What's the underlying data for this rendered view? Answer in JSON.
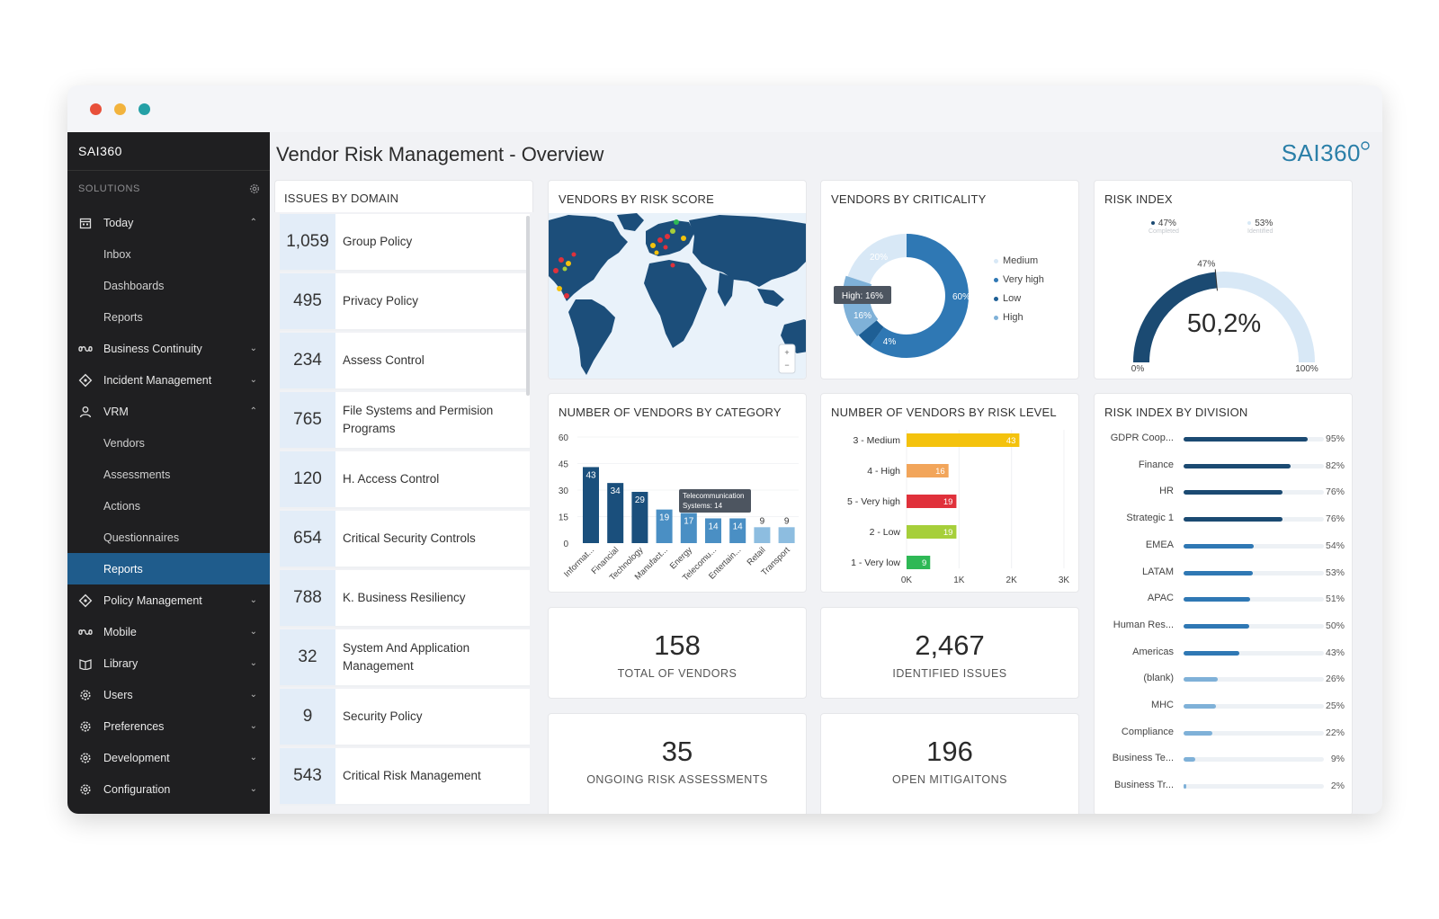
{
  "sidebar": {
    "logo": "SAI360",
    "section_label": "SOLUTIONS",
    "items": [
      {
        "label": "Today",
        "icon": "calendar-icon",
        "expanded": true,
        "subitems": [
          "Inbox",
          "Dashboards",
          "Reports"
        ]
      },
      {
        "label": "Business Continuity",
        "icon": "infinity-icon",
        "expanded": false
      },
      {
        "label": "Incident Management",
        "icon": "diamond-icon",
        "expanded": false
      },
      {
        "label": "VRM",
        "icon": "user-icon",
        "expanded": true,
        "subitems": [
          "Vendors",
          "Assessments",
          "Actions",
          "Questionnaires",
          "Reports"
        ]
      },
      {
        "label": "Policy Management",
        "icon": "diamond-icon",
        "expanded": false
      },
      {
        "label": "Mobile",
        "icon": "infinity-icon",
        "expanded": false
      },
      {
        "label": "Library",
        "icon": "library-icon",
        "expanded": false
      },
      {
        "label": "Users",
        "icon": "gear-icon",
        "expanded": false
      },
      {
        "label": "Preferences",
        "icon": "gear-icon",
        "expanded": false
      },
      {
        "label": "Development",
        "icon": "gear-icon",
        "expanded": false
      },
      {
        "label": "Configuration",
        "icon": "gear-icon",
        "expanded": false
      }
    ],
    "active_subitem": "Reports"
  },
  "header": {
    "title": "Vendor Risk Management - Overview",
    "brand": "SAI360"
  },
  "issues": {
    "title": "ISSUES BY DOMAIN",
    "rows": [
      {
        "count": "1,059",
        "label": "Group Policy"
      },
      {
        "count": "495",
        "label": "Privacy Policy"
      },
      {
        "count": "234",
        "label": "Assess Control"
      },
      {
        "count": "765",
        "label": "File Systems and Permision Programs"
      },
      {
        "count": "120",
        "label": "H. Access Control"
      },
      {
        "count": "654",
        "label": "Critical Security Controls"
      },
      {
        "count": "788",
        "label": "K. Business Resiliency"
      },
      {
        "count": "32",
        "label": "System And Application Management"
      },
      {
        "count": "9",
        "label": "Security Policy"
      },
      {
        "count": "543",
        "label": "Critical Risk Management"
      }
    ]
  },
  "map": {
    "title": "VENDORS BY RISK SCORE",
    "zoom_in": "+",
    "zoom_out": "−"
  },
  "criticality": {
    "title": "VENDORS BY CRITICALITY",
    "tooltip": "High: 16%",
    "labels": {
      "very_high": "60%",
      "high": "16%",
      "low": "4%",
      "medium": "20%"
    },
    "legend": [
      {
        "label": "Medium",
        "color": "#d8e8f6"
      },
      {
        "label": "Very high",
        "color": "#2f78b4"
      },
      {
        "label": "Low",
        "color": "#1e5f95"
      },
      {
        "label": "High",
        "color": "#7fb1d8"
      }
    ]
  },
  "risk_index": {
    "title": "RISK INDEX",
    "value": "50,2%",
    "legend": [
      {
        "pct": "47%",
        "sub": "Completed",
        "color": "#1b4a72"
      },
      {
        "pct": "53%",
        "sub": "Identified",
        "color": "#d8e8f6"
      }
    ],
    "marker": "47%",
    "min": "0%",
    "max": "100%",
    "fraction": 0.47
  },
  "chart_data": [
    {
      "type": "bar",
      "title": "NUMBER OF VENDORS BY CATEGORY",
      "categories": [
        "Informat...",
        "Financial",
        "Technology",
        "Manufact...",
        "Energy",
        "Telecomu...",
        "Entertain...",
        "Retail",
        "Transport"
      ],
      "values": [
        43,
        34,
        29,
        19,
        17,
        14,
        14,
        9,
        9
      ],
      "ylim": [
        0,
        60
      ],
      "yticks": [
        "60",
        "45",
        "30",
        "15",
        "0"
      ],
      "tooltip": [
        "Telecommunication",
        "Systems: 14"
      ],
      "colors": [
        "#1a4f7c",
        "#1a4f7c",
        "#1a4f7c",
        "#4a8fc4",
        "#4a8fc4",
        "#4a8fc4",
        "#4a8fc4",
        "#8dbde0",
        "#8dbde0"
      ]
    },
    {
      "type": "bar",
      "orientation": "horizontal",
      "title": "NUMBER OF VENDORS BY RISK LEVEL",
      "categories": [
        "3 - Medium",
        "4 - High",
        "5 - Very high",
        "2 - Low",
        "1 - Very low"
      ],
      "values": [
        43,
        16,
        19,
        19,
        9
      ],
      "colors": [
        "#f4c20d",
        "#f2a55a",
        "#e0313b",
        "#a6cf3a",
        "#2eb855"
      ],
      "xticks": [
        "0K",
        "1K",
        "2K",
        "3K"
      ]
    },
    {
      "type": "bar",
      "orientation": "horizontal",
      "title": "RISK INDEX BY DIVISION",
      "categories": [
        "GDPR Coop...",
        "Finance",
        "HR",
        "Strategic 1",
        "EMEA",
        "LATAM",
        "APAC",
        "Human Res...",
        "Americas",
        "(blank)",
        "MHC",
        "Compliance",
        "Business Te...",
        "Business Tr..."
      ],
      "values": [
        95,
        82,
        76,
        76,
        54,
        53,
        51,
        50,
        43,
        26,
        25,
        22,
        9,
        2
      ],
      "value_labels": [
        "95%",
        "82%",
        "76%",
        "76%",
        "54%",
        "53%",
        "51%",
        "50%",
        "43%",
        "26%",
        "25%",
        "22%",
        "9%",
        "2%"
      ]
    }
  ],
  "kpis": [
    {
      "value": "158",
      "label": "TOTAL OF VENDORS"
    },
    {
      "value": "2,467",
      "label": "IDENTIFIED ISSUES"
    },
    {
      "value": "35",
      "label": "ONGOING RISK ASSESSMENTS"
    },
    {
      "value": "196",
      "label": "OPEN MITIGAITONS"
    }
  ]
}
